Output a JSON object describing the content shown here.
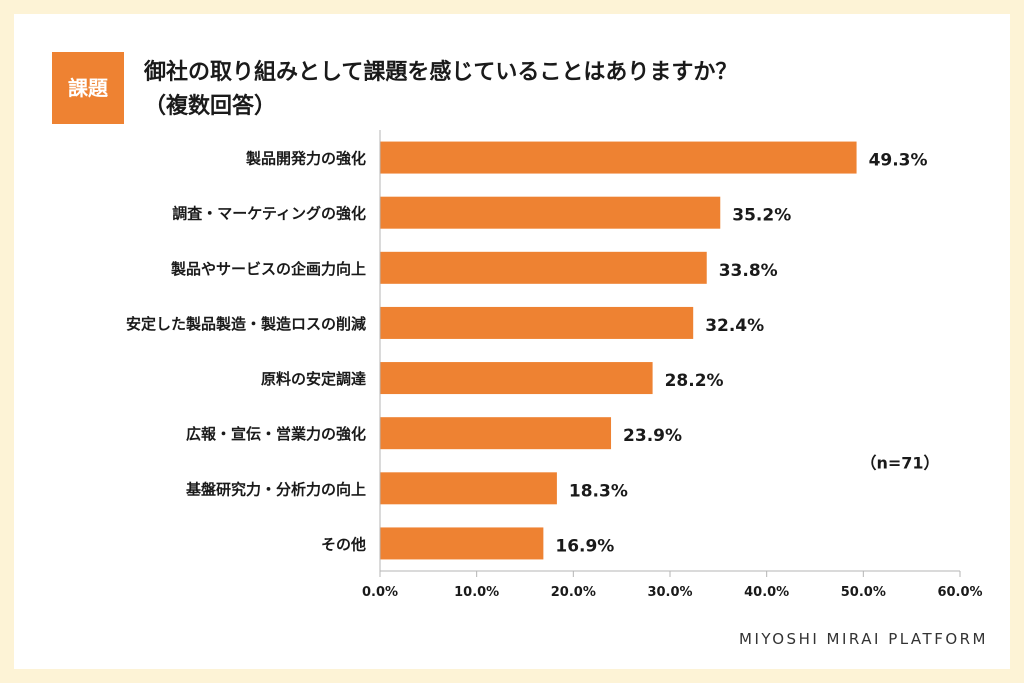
{
  "tag": "課題",
  "title_line1": "御社の取り組みとして課題を感じていることはありますか？",
  "title_line2": "（複数回答）",
  "footer_brand": "MIYOSHI MIRAI PLATFORM",
  "colors": {
    "bar": "#ee8232",
    "accent": "#ee8232",
    "background": "#fdf3d6"
  },
  "chart_data": {
    "type": "bar",
    "orientation": "horizontal",
    "categories": [
      "製品開発力の強化",
      "調査・マーケティングの強化",
      "製品やサービスの企画力向上",
      "安定した製品製造・製造ロスの削減",
      "原料の安定調達",
      "広報・宣伝・営業力の強化",
      "基盤研究力・分析力の向上",
      "その他"
    ],
    "values": [
      49.3,
      35.2,
      33.8,
      32.4,
      28.2,
      23.9,
      18.3,
      16.9
    ],
    "value_labels": [
      "49.3%",
      "35.2%",
      "33.8%",
      "32.4%",
      "28.2%",
      "23.9%",
      "18.3%",
      "16.9%"
    ],
    "xticks": [
      0,
      10,
      20,
      30,
      40,
      50,
      60
    ],
    "xtick_labels": [
      "0.0%",
      "10.0%",
      "20.0%",
      "30.0%",
      "40.0%",
      "50.0%",
      "60.0%"
    ],
    "xlim": [
      0,
      60
    ],
    "annotation": "（n=71）",
    "grid": false
  }
}
